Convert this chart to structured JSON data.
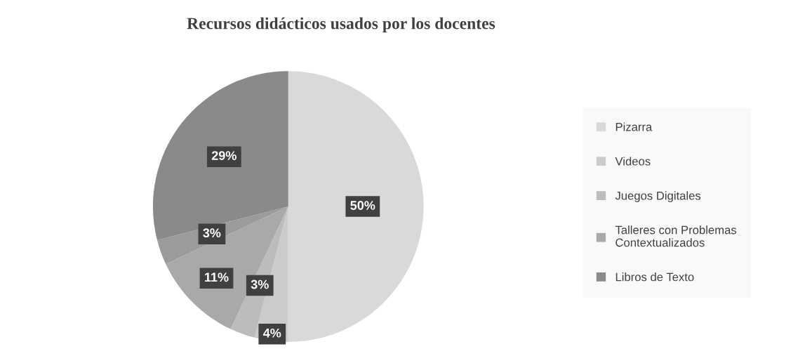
{
  "chart_data": {
    "type": "pie",
    "title": "Recursos didácticos usados por los docentes",
    "categories": [
      "Pizarra",
      "Videos",
      "Juegos Digitales",
      "Talleres con Problemas Contextualizados",
      null,
      "Libros de Texto"
    ],
    "values": [
      50,
      4,
      3,
      11,
      3,
      29
    ],
    "value_labels": [
      "50%",
      "4%",
      "3%",
      "11%",
      "3%",
      "29%"
    ],
    "colors": [
      "#d9d9d9",
      "#cbcbcb",
      "#bcbcbc",
      "#a9a9a9",
      "#9b9b9b",
      "#8a8a8a"
    ],
    "legend": "right"
  }
}
